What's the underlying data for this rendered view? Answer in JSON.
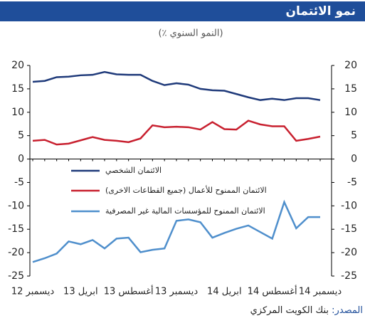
{
  "chart_data": {
    "type": "line",
    "title": "نمو الائتمان",
    "subtitle": "(٪ النمو السنوي)",
    "source_label": "المصدر:",
    "source_text": "بنك الكويت المركزي",
    "categories": [
      "ديسمبر 12",
      null,
      null,
      null,
      "ابريل 13",
      null,
      null,
      null,
      "أغسطس 13",
      null,
      null,
      null,
      "ديسمبر 13",
      null,
      null,
      null,
      "ابريل 14",
      null,
      null,
      null,
      "أغسطس 14",
      null,
      null,
      null,
      "ديسمبر 14"
    ],
    "series": [
      {
        "name": "الائتمان الشخصي",
        "color": "#1f3a7a",
        "values": [
          16.5,
          16.7,
          17.5,
          17.6,
          17.9,
          18.0,
          18.6,
          18.1,
          18.0,
          18.0,
          16.7,
          15.8,
          16.2,
          15.9,
          15.0,
          14.7,
          14.6,
          13.9,
          13.2,
          12.6,
          12.9,
          12.6,
          13.0,
          13.0,
          12.6
        ]
      },
      {
        "name": "الائتمان الممنوح للأعمال (جميع القطاعات الاخرى)",
        "color": "#c8202f",
        "values": [
          3.9,
          4.1,
          3.1,
          3.3,
          4.0,
          4.7,
          4.1,
          3.9,
          3.6,
          4.4,
          7.2,
          6.8,
          6.9,
          6.8,
          6.3,
          7.9,
          6.4,
          6.3,
          8.2,
          7.4,
          7.0,
          7.0,
          3.9,
          4.3,
          4.8
        ]
      },
      {
        "name": "الائتمان الممنوح للمؤسسات المالية غير المصرفية",
        "color": "#4f8fcc",
        "values": [
          -22.0,
          -21.2,
          -20.2,
          -17.6,
          -18.2,
          -17.3,
          -19.1,
          -17.0,
          -16.8,
          -19.9,
          -19.4,
          -19.1,
          -13.2,
          -12.9,
          -13.5,
          -16.8,
          -15.8,
          -14.9,
          -14.2,
          -15.6,
          -17.0,
          -9.2,
          -14.8,
          -12.4,
          -12.4
        ]
      }
    ],
    "ylim": [
      -25,
      20
    ],
    "yticks": [
      20,
      15,
      10,
      5,
      0,
      -5,
      -10,
      -15,
      -20,
      -25
    ],
    "y2lim": [
      -25,
      20
    ],
    "y2ticks": [
      20,
      15,
      10,
      5,
      0,
      -5,
      -10,
      -15,
      -20,
      -25
    ],
    "title_bar_color": "#1f4e9a",
    "source_label_color": "#1f4e9a"
  }
}
